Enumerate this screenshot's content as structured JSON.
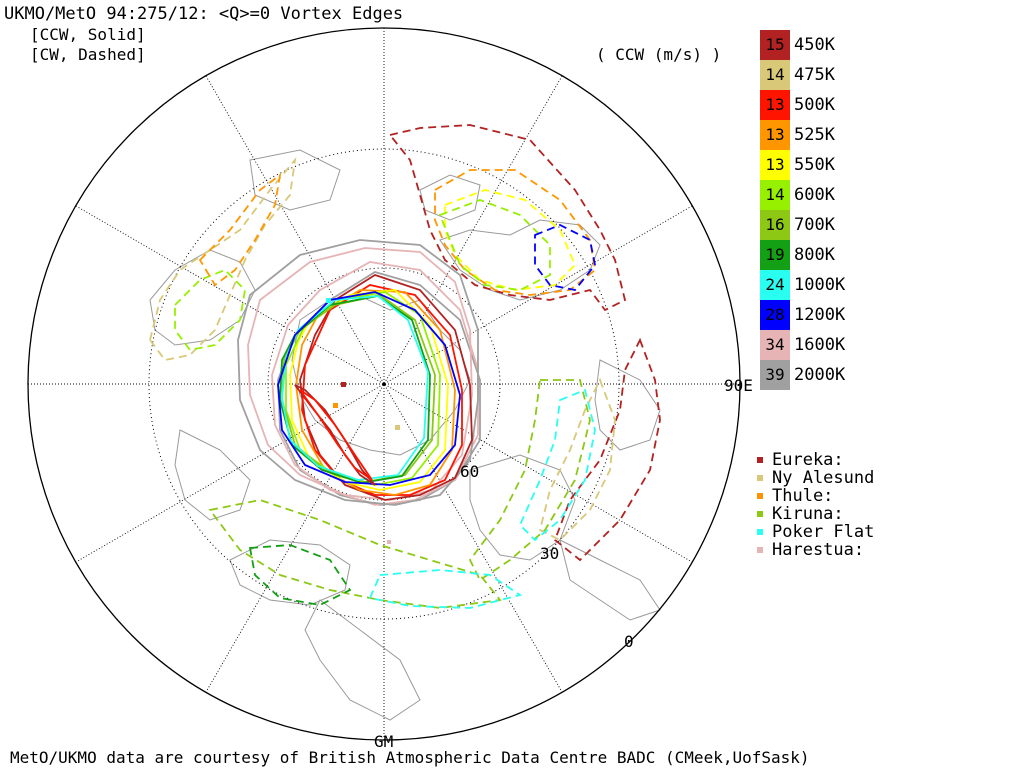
{
  "header": {
    "title": "UKMO/MetO 94:275/12: <Q>=0 Vortex Edges",
    "ccw_note": "[CCW, Solid]",
    "cw_note": "[CW, Dashed]",
    "units": "( CCW (m/s) )"
  },
  "footer": {
    "credit": "MetO/UKMO data are courtesy of British Atmospheric Data Centre BADC (CMeek,UofSask)"
  },
  "map_labels": {
    "lon_east": "90E",
    "lon_gm": "GM",
    "lat_60": "60",
    "lat_30": "30",
    "lat_0": "0"
  },
  "legend": [
    {
      "value": "15",
      "label": "450K",
      "color": "#b22222"
    },
    {
      "value": "14",
      "label": "475K",
      "color": "#d8c878"
    },
    {
      "value": "13",
      "label": "500K",
      "color": "#ff1400"
    },
    {
      "value": "13",
      "label": "525K",
      "color": "#ff9600"
    },
    {
      "value": "13",
      "label": "550K",
      "color": "#ffff00"
    },
    {
      "value": "14",
      "label": "600K",
      "color": "#96f000"
    },
    {
      "value": "16",
      "label": "700K",
      "color": "#8cc814"
    },
    {
      "value": "19",
      "label": "800K",
      "color": "#14a014"
    },
    {
      "value": "24",
      "label": "1000K",
      "color": "#28fff0"
    },
    {
      "value": "28",
      "label": "1200K",
      "color": "#0000ff"
    },
    {
      "value": "34",
      "label": "1600K",
      "color": "#e6b4b4"
    },
    {
      "value": "39",
      "label": "2000K",
      "color": "#a0a0a0"
    }
  ],
  "stations": [
    {
      "label": "Eureka:",
      "color": "#b22222"
    },
    {
      "label": "Ny Alesund",
      "color": "#d8c878"
    },
    {
      "label": "Thule:",
      "color": "#ff9600"
    },
    {
      "label": "Kiruna:",
      "color": "#8cc814"
    },
    {
      "label": "Poker Flat",
      "color": "#28fff0"
    },
    {
      "label": "Harestua:",
      "color": "#e6b4b4"
    }
  ]
}
